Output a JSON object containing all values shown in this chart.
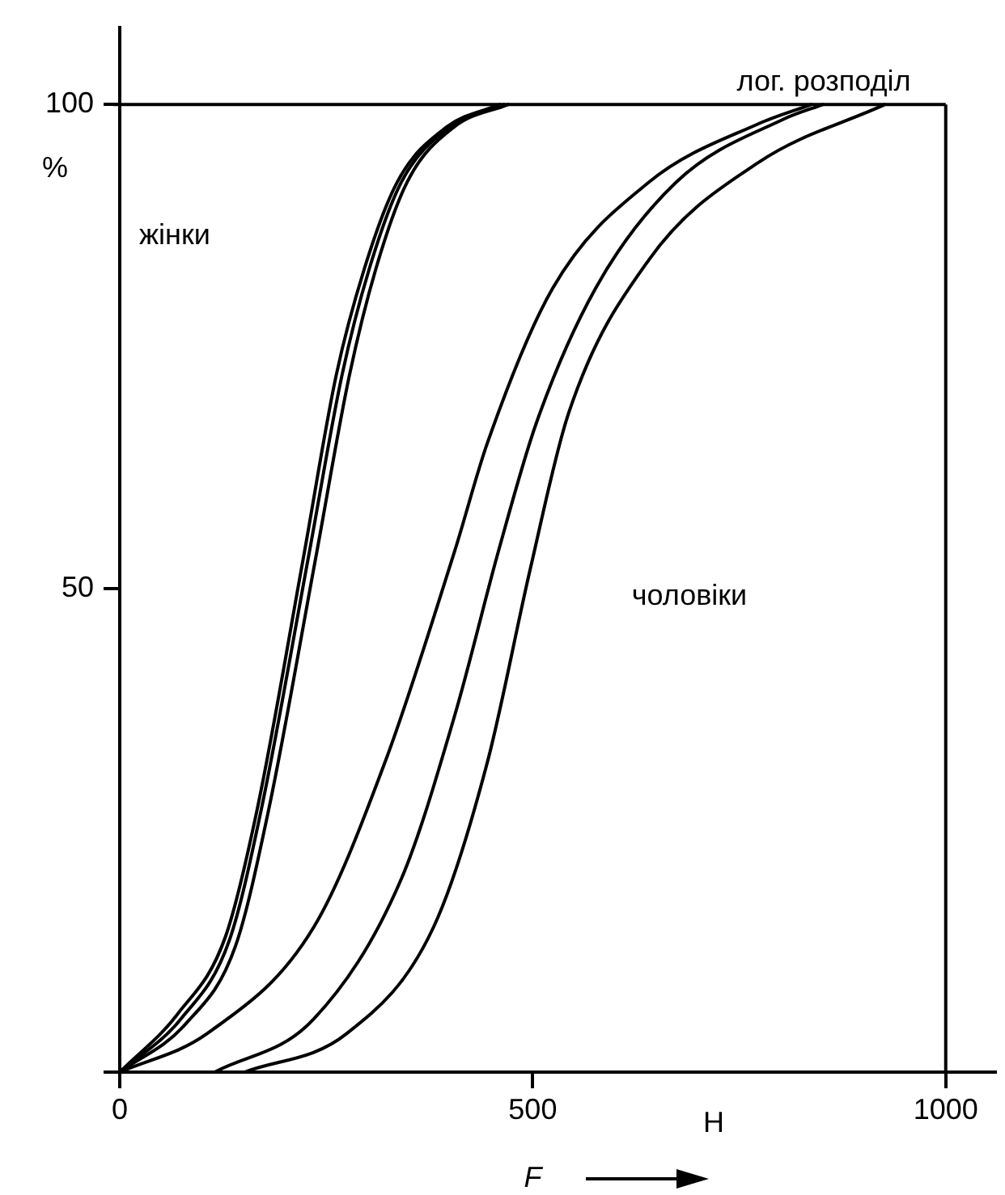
{
  "chart_data": {
    "type": "line",
    "xlabel": "F",
    "ylabel": "%",
    "annotations": [
      "жінки",
      "чоловіки",
      "лог. розподіл",
      "H"
    ],
    "xlim": [
      0,
      1060
    ],
    "ylim": [
      0,
      108
    ],
    "xticks": [
      0,
      500,
      1000
    ],
    "yticks": [
      {
        "value": 0,
        "label": null
      },
      50,
      100
    ],
    "ref_lines": [
      {
        "axis": "y",
        "value": 100,
        "color": "#000000"
      },
      {
        "axis": "x",
        "value": 1000,
        "color": "#000000"
      }
    ],
    "grid": false,
    "legend": false,
    "marker": "none",
    "line_style": "solid",
    "series": [
      {
        "color": "#000000",
        "x": [
          0,
          70,
          128,
          166,
          222,
          262,
          296,
          336,
          396,
          460
        ],
        "values": [
          0,
          6,
          14,
          27,
          53,
          72,
          83,
          92,
          97.7,
          100
        ]
      },
      {
        "color": "#000000",
        "x": [
          0,
          74,
          133,
          171,
          229,
          269,
          302,
          341,
          400,
          465
        ],
        "values": [
          0,
          5.5,
          13.7,
          27,
          53.5,
          72,
          83,
          92,
          97.7,
          100
        ]
      },
      {
        "color": "#000000",
        "x": [
          0,
          80,
          140,
          180,
          238,
          278,
          310,
          348,
          405,
          470
        ],
        "values": [
          0,
          5,
          13,
          27,
          53.5,
          72,
          83,
          92,
          97.7,
          100
        ]
      },
      {
        "color": "#000000",
        "x": [
          0,
          106,
          235,
          321,
          406,
          445,
          524,
          641,
          773,
          837
        ],
        "values": [
          0,
          4,
          15,
          32,
          54,
          65,
          81,
          92,
          98,
          100
        ]
      },
      {
        "color": "#000000",
        "x": [
          115,
          235,
          341,
          406,
          459,
          504,
          576,
          674,
          804,
          851
        ],
        "values": [
          0,
          5.5,
          20,
          37,
          54,
          67,
          81,
          92,
          98.5,
          100
        ]
      },
      {
        "color": "#000000",
        "x": [
          151,
          275,
          380,
          445,
          497,
          543,
          641,
          773,
          926
        ],
        "values": [
          0,
          4,
          15,
          32,
          52,
          68,
          84,
          94,
          100
        ]
      }
    ]
  }
}
